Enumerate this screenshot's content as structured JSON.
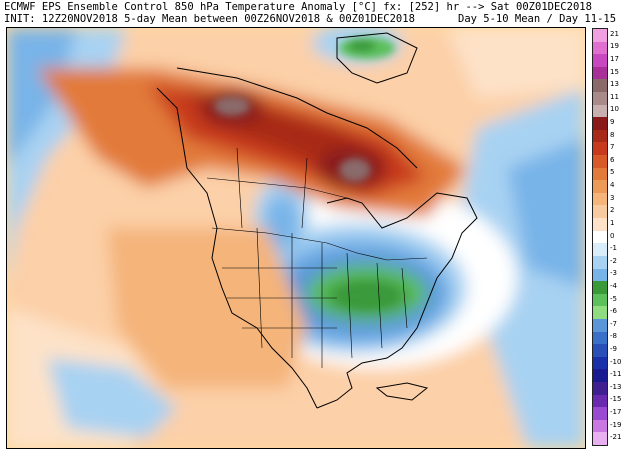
{
  "header": {
    "line1": "ECMWF EPS Ensemble Control 850 hPa Temperature Anomaly [°C] fx: [252] hr --> Sat 00Z01DEC2018",
    "line2": "INIT: 12Z20NOV2018 5-day Mean between 00Z26NOV2018 & 00Z01DEC2018",
    "line2_right": "Day 5-10 Mean / Day 11-15"
  },
  "legend": {
    "labels": [
      "21",
      "19",
      "17",
      "15",
      "13",
      "11",
      "10",
      "9",
      "8",
      "7",
      "6",
      "5",
      "4",
      "3",
      "2",
      "1",
      "0",
      "-1",
      "-2",
      "-3",
      "-4",
      "-5",
      "-6",
      "-7",
      "-8",
      "-9",
      "-10",
      "-11",
      "-13",
      "-15",
      "-17",
      "-19",
      "-21"
    ],
    "colors": [
      "#f0a0e0",
      "#e070d0",
      "#c848c0",
      "#a83098",
      "#8a6a6a",
      "#a88a8a",
      "#c8b0b0",
      "#8a1a1a",
      "#a82a18",
      "#c83a1e",
      "#d85a28",
      "#e27a3a",
      "#ec9a58",
      "#f4b47a",
      "#f8caa0",
      "#fde2c8",
      "#ffffff",
      "#d8ecfa",
      "#a8d2f2",
      "#78b4e8",
      "#3a9a3a",
      "#5cc05c",
      "#90dc80",
      "#5a96d8",
      "#3a70c8",
      "#2a50b8",
      "#1a30a8",
      "#1a1a90",
      "#402090",
      "#6a2ab0",
      "#9a4ad0",
      "#c878e0",
      "#e8b0f0"
    ]
  }
}
